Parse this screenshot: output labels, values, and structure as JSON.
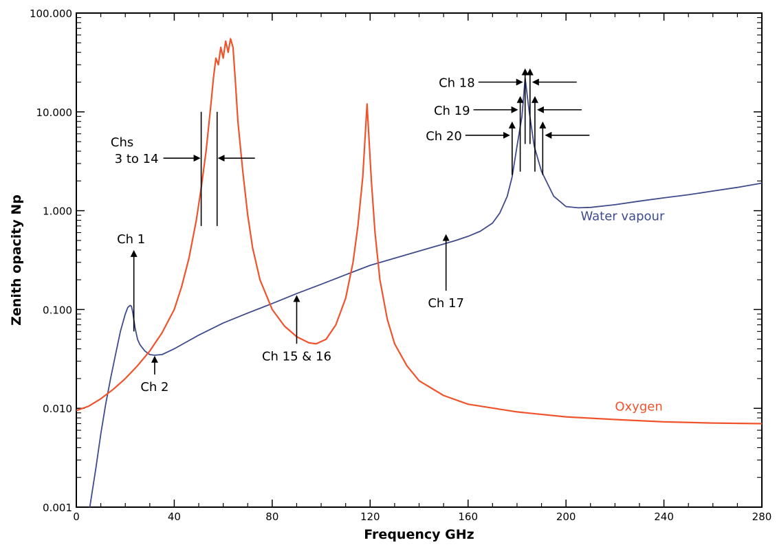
{
  "chart_data": {
    "type": "line",
    "xlabel": "Frequency GHz",
    "ylabel": "Zenith opacity Np",
    "xlim": [
      0,
      280
    ],
    "ylim": [
      0.001,
      100
    ],
    "yscale": "log",
    "x_ticks": [
      0,
      40,
      80,
      120,
      160,
      200,
      240,
      280
    ],
    "x_tick_labels": [
      "0",
      "40",
      "80",
      "120",
      "160",
      "200",
      "240",
      "280"
    ],
    "y_ticks": [
      0.001,
      0.01,
      0.1,
      1,
      10,
      100
    ],
    "y_tick_labels": [
      "0.001",
      "0.010",
      "0.100",
      "1.000",
      "10.000",
      "100.000"
    ],
    "grid": false,
    "series": [
      {
        "name": "Water vapour",
        "color": "#3d4a8c",
        "x": [
          5.5,
          8,
          10,
          12,
          14,
          16,
          18,
          20,
          21,
          22,
          22.5,
          23,
          24,
          25,
          26,
          28,
          30,
          32,
          35,
          40,
          45,
          50,
          60,
          70,
          80,
          90,
          100,
          110,
          120,
          130,
          140,
          150,
          155,
          160,
          165,
          170,
          173,
          176,
          178,
          180,
          182,
          183.3,
          185,
          187,
          190,
          195,
          200,
          205,
          210,
          220,
          230,
          240,
          250,
          260,
          270,
          280
        ],
        "values": [
          0.001,
          0.0025,
          0.0055,
          0.011,
          0.02,
          0.035,
          0.06,
          0.09,
          0.105,
          0.11,
          0.108,
          0.095,
          0.065,
          0.05,
          0.044,
          0.038,
          0.035,
          0.0345,
          0.035,
          0.04,
          0.047,
          0.055,
          0.073,
          0.092,
          0.115,
          0.145,
          0.18,
          0.225,
          0.28,
          0.33,
          0.39,
          0.46,
          0.5,
          0.55,
          0.62,
          0.75,
          0.95,
          1.4,
          2.2,
          4.5,
          9.0,
          22.0,
          10.0,
          4.5,
          2.5,
          1.4,
          1.1,
          1.07,
          1.08,
          1.15,
          1.25,
          1.35,
          1.45,
          1.58,
          1.72,
          1.9
        ]
      },
      {
        "name": "Oxygen",
        "color": "#f0532b",
        "x": [
          0,
          5,
          10,
          15,
          20,
          25,
          30,
          35,
          40,
          43,
          46,
          49,
          51,
          53,
          55,
          56,
          57,
          58,
          59,
          60,
          61,
          62,
          63,
          64,
          65,
          66,
          68,
          70,
          72,
          75,
          80,
          85,
          90,
          95,
          98,
          102,
          106,
          110,
          113,
          115,
          117,
          118.75,
          120.5,
          122,
          124,
          127,
          130,
          135,
          140,
          150,
          160,
          180,
          200,
          220,
          240,
          260,
          280
        ],
        "values": [
          0.0095,
          0.0105,
          0.0125,
          0.0155,
          0.02,
          0.027,
          0.038,
          0.058,
          0.1,
          0.17,
          0.33,
          0.8,
          1.7,
          4.0,
          12.0,
          22.0,
          35.0,
          30.0,
          45.0,
          35.0,
          52.0,
          40.0,
          55.0,
          45.0,
          20.0,
          8.0,
          2.5,
          0.9,
          0.42,
          0.2,
          0.1,
          0.068,
          0.053,
          0.046,
          0.045,
          0.05,
          0.07,
          0.13,
          0.3,
          0.7,
          2.2,
          12.0,
          2.0,
          0.6,
          0.2,
          0.08,
          0.045,
          0.027,
          0.019,
          0.0135,
          0.011,
          0.0092,
          0.0082,
          0.0077,
          0.0073,
          0.0071,
          0.007
        ]
      }
    ],
    "series_labels": [
      {
        "text": "Water vapour",
        "x": 206,
        "y": 0.8
      },
      {
        "text": "Oxygen",
        "x": 220,
        "y": 0.0095
      }
    ],
    "annotations": {
      "ch1": {
        "text": "Ch 1",
        "x": 23.5,
        "y_from": 0.06,
        "y_to": 0.4
      },
      "ch2": {
        "text": "Ch 2",
        "x": 32,
        "y_from": 0.022,
        "y_to": 0.034
      },
      "ch15_16": {
        "text": "Ch 15 & 16",
        "x": 90,
        "y_from": 0.045,
        "y_to": 0.14
      },
      "ch17": {
        "text": "Ch 17",
        "x": 151,
        "y_from": 0.155,
        "y_to": 0.58
      },
      "chs3_14": {
        "line1": "Chs",
        "line2": "3 to 14",
        "x_left": 51,
        "x_right": 57.5,
        "y_low": 0.7,
        "y_high": 10.0,
        "arrow_y": 3.4
      },
      "ch18": {
        "text": "Ch 18",
        "x_left": 183.3,
        "x_right": 185.3,
        "arrow_y": 20.0
      },
      "ch19": {
        "text": "Ch 19",
        "x_left": 181.3,
        "x_right": 187.3,
        "arrow_y": 10.5
      },
      "ch20": {
        "text": "Ch 20",
        "x_left": 178,
        "x_right": 190.5,
        "arrow_y": 5.8
      }
    }
  }
}
